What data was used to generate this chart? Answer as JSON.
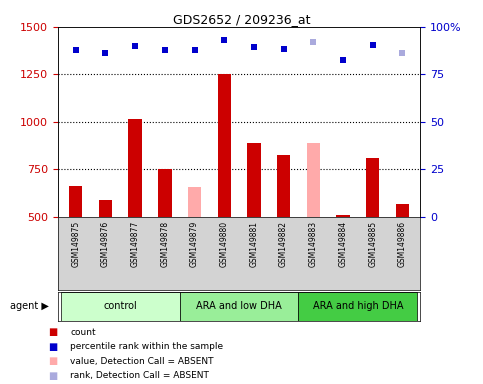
{
  "title": "GDS2652 / 209236_at",
  "samples": [
    "GSM149875",
    "GSM149876",
    "GSM149877",
    "GSM149878",
    "GSM149879",
    "GSM149880",
    "GSM149881",
    "GSM149882",
    "GSM149883",
    "GSM149884",
    "GSM149885",
    "GSM149886"
  ],
  "bar_values": [
    665,
    590,
    1015,
    752,
    null,
    1250,
    890,
    825,
    null,
    510,
    810,
    570
  ],
  "bar_absent_values": [
    null,
    null,
    null,
    null,
    660,
    null,
    null,
    null,
    890,
    null,
    null,
    null
  ],
  "bar_color_present": "#cc0000",
  "bar_color_absent": "#ffaaaa",
  "dot_values_left": [
    1380,
    1365,
    1400,
    1380,
    1380,
    1430,
    1395,
    1385,
    1420,
    1325,
    1405,
    1360
  ],
  "dot_absent": [
    false,
    false,
    false,
    false,
    false,
    false,
    false,
    false,
    true,
    false,
    false,
    true
  ],
  "dot_color_present": "#0000cc",
  "dot_color_absent": "#aaaadd",
  "ylim": [
    500,
    1500
  ],
  "y2lim": [
    0,
    100
  ],
  "yticks_left": [
    500,
    750,
    1000,
    1250,
    1500
  ],
  "yticks_right": [
    0,
    25,
    50,
    75,
    100
  ],
  "dotted_lines": [
    750,
    1000,
    1250
  ],
  "groups": [
    {
      "label": "control",
      "start": 0,
      "end": 3,
      "color": "#ccffcc"
    },
    {
      "label": "ARA and low DHA",
      "start": 4,
      "end": 7,
      "color": "#99ee99"
    },
    {
      "label": "ARA and high DHA",
      "start": 8,
      "end": 11,
      "color": "#44cc44"
    }
  ],
  "legend_items": [
    {
      "label": "count",
      "color": "#cc0000"
    },
    {
      "label": "percentile rank within the sample",
      "color": "#0000cc"
    },
    {
      "label": "value, Detection Call = ABSENT",
      "color": "#ffaaaa"
    },
    {
      "label": "rank, Detection Call = ABSENT",
      "color": "#aaaadd"
    }
  ],
  "left_axis_color": "#cc0000",
  "right_axis_color": "#0000cc",
  "sample_bg": "#d3d3d3",
  "plot_bg": "#ffffff",
  "bar_width": 0.45
}
